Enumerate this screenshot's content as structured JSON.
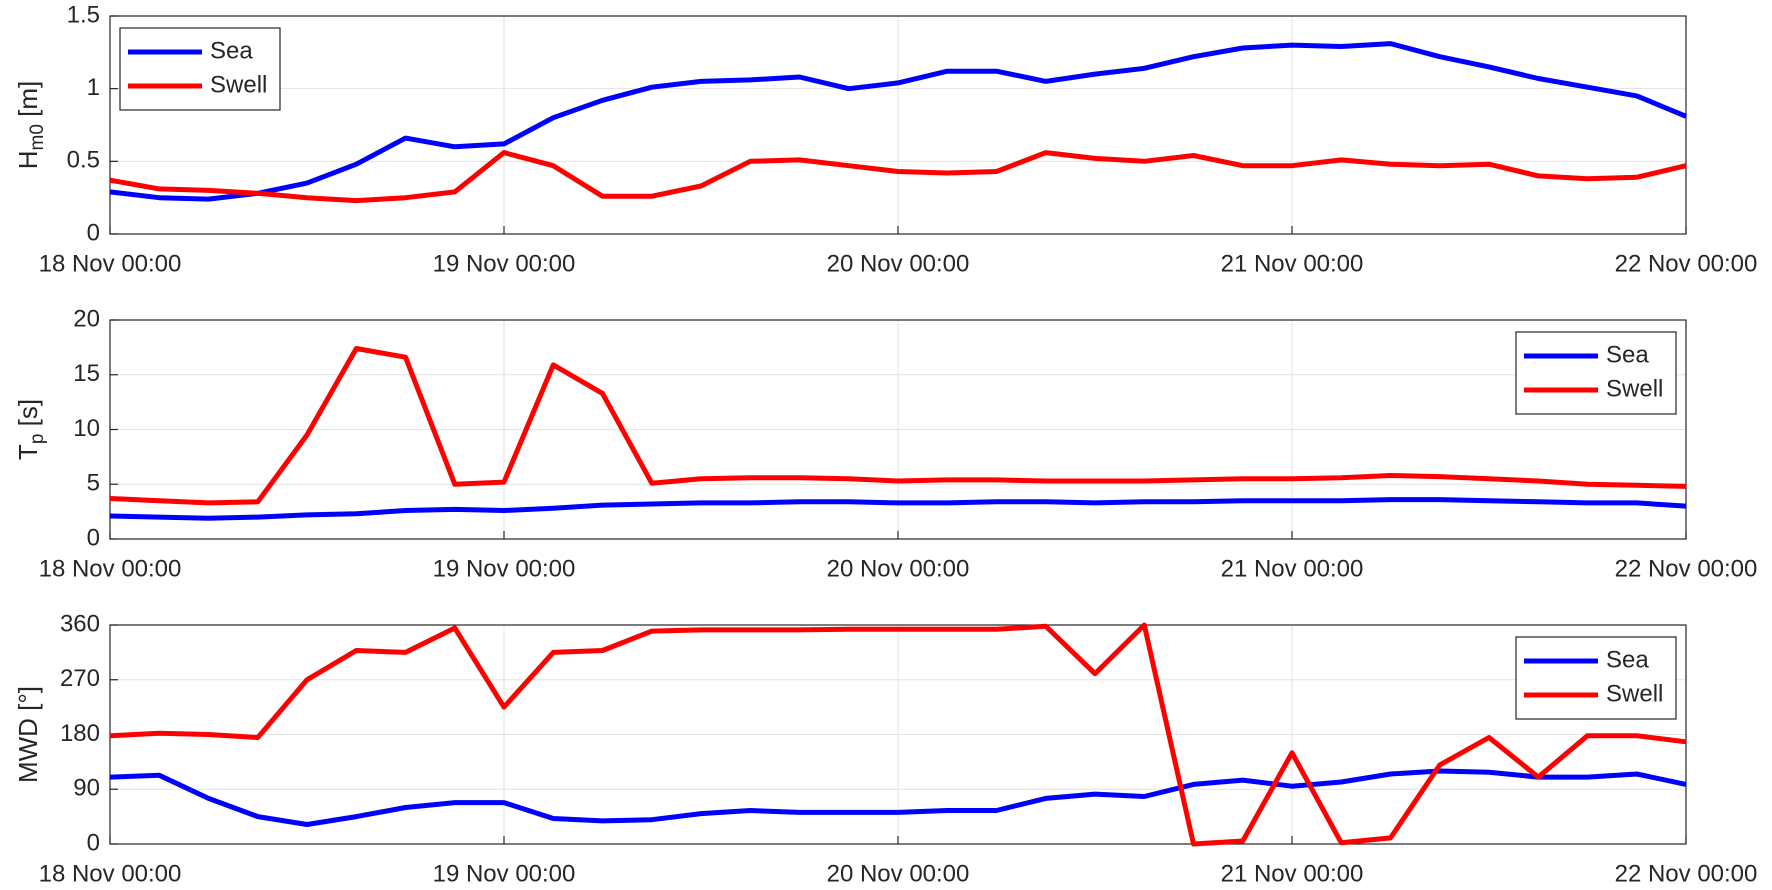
{
  "chart_data": [
    {
      "type": "line",
      "ylabel": [
        "H",
        "m0",
        " [m]"
      ],
      "legend": "upper left",
      "grid": true,
      "xlim": [
        0,
        96
      ],
      "xticks": [
        {
          "value": 0,
          "label": "18 Nov 00:00"
        },
        {
          "value": 24,
          "label": "19 Nov 00:00"
        },
        {
          "value": 48,
          "label": "20 Nov 00:00"
        },
        {
          "value": 72,
          "label": "21 Nov 00:00"
        },
        {
          "value": 96,
          "label": "22 Nov 00:00"
        }
      ],
      "ylim": [
        0,
        1.5
      ],
      "yticks": [
        0,
        0.5,
        1,
        1.5
      ],
      "x": [
        0,
        3,
        6,
        9,
        12,
        15,
        18,
        21,
        24,
        27,
        30,
        33,
        36,
        39,
        42,
        45,
        48,
        51,
        54,
        57,
        60,
        63,
        66,
        69,
        72,
        75,
        78,
        81,
        84,
        87,
        90,
        93,
        96
      ],
      "series": [
        {
          "name": "Sea",
          "color": "#0000ff",
          "values": [
            0.29,
            0.25,
            0.24,
            0.28,
            0.35,
            0.48,
            0.66,
            0.6,
            0.62,
            0.8,
            0.92,
            1.01,
            1.05,
            1.06,
            1.08,
            1.0,
            1.04,
            1.12,
            1.12,
            1.05,
            1.1,
            1.14,
            1.22,
            1.28,
            1.3,
            1.29,
            1.31,
            1.22,
            1.15,
            1.07,
            1.01,
            0.95,
            0.81
          ]
        },
        {
          "name": "Swell",
          "color": "#ff0000",
          "values": [
            0.37,
            0.31,
            0.3,
            0.28,
            0.25,
            0.23,
            0.25,
            0.29,
            0.56,
            0.47,
            0.26,
            0.26,
            0.33,
            0.5,
            0.51,
            0.47,
            0.43,
            0.42,
            0.43,
            0.56,
            0.52,
            0.5,
            0.54,
            0.47,
            0.47,
            0.51,
            0.48,
            0.47,
            0.48,
            0.4,
            0.38,
            0.39,
            0.47
          ]
        }
      ]
    },
    {
      "type": "line",
      "ylabel": [
        "T",
        "p",
        " [s]"
      ],
      "legend": "upper right",
      "grid": true,
      "xlim": [
        0,
        96
      ],
      "xticks": [
        {
          "value": 0,
          "label": "18 Nov 00:00"
        },
        {
          "value": 24,
          "label": "19 Nov 00:00"
        },
        {
          "value": 48,
          "label": "20 Nov 00:00"
        },
        {
          "value": 72,
          "label": "21 Nov 00:00"
        },
        {
          "value": 96,
          "label": "22 Nov 00:00"
        }
      ],
      "ylim": [
        0,
        20
      ],
      "yticks": [
        0,
        5,
        10,
        15,
        20
      ],
      "x": [
        0,
        3,
        6,
        9,
        12,
        15,
        18,
        21,
        24,
        27,
        30,
        33,
        36,
        39,
        42,
        45,
        48,
        51,
        54,
        57,
        60,
        63,
        66,
        69,
        72,
        75,
        78,
        81,
        84,
        87,
        90,
        93,
        96
      ],
      "series": [
        {
          "name": "Sea",
          "color": "#0000ff",
          "values": [
            2.1,
            2.0,
            1.9,
            2.0,
            2.2,
            2.3,
            2.6,
            2.7,
            2.6,
            2.8,
            3.1,
            3.2,
            3.3,
            3.3,
            3.4,
            3.4,
            3.3,
            3.3,
            3.4,
            3.4,
            3.3,
            3.4,
            3.4,
            3.5,
            3.5,
            3.5,
            3.6,
            3.6,
            3.5,
            3.4,
            3.3,
            3.3,
            3.0
          ]
        },
        {
          "name": "Swell",
          "color": "#ff0000",
          "values": [
            3.7,
            3.5,
            3.3,
            3.4,
            9.5,
            17.4,
            16.6,
            5.0,
            5.2,
            15.9,
            13.3,
            5.1,
            5.5,
            5.6,
            5.6,
            5.5,
            5.3,
            5.4,
            5.4,
            5.3,
            5.3,
            5.3,
            5.4,
            5.5,
            5.5,
            5.6,
            5.8,
            5.7,
            5.5,
            5.3,
            5.0,
            4.9,
            4.8
          ]
        }
      ]
    },
    {
      "type": "line",
      "ylabel": "MWD [°]",
      "legend": "upper right",
      "grid": true,
      "xlim": [
        0,
        96
      ],
      "xticks": [
        {
          "value": 0,
          "label": "18 Nov 00:00"
        },
        {
          "value": 24,
          "label": "19 Nov 00:00"
        },
        {
          "value": 48,
          "label": "20 Nov 00:00"
        },
        {
          "value": 72,
          "label": "21 Nov 00:00"
        },
        {
          "value": 96,
          "label": "22 Nov 00:00"
        }
      ],
      "ylim": [
        0,
        360
      ],
      "yticks": [
        0,
        90,
        180,
        270,
        360
      ],
      "x": [
        0,
        3,
        6,
        9,
        12,
        15,
        18,
        21,
        24,
        27,
        30,
        33,
        36,
        39,
        42,
        45,
        48,
        51,
        54,
        57,
        60,
        63,
        66,
        69,
        72,
        75,
        78,
        81,
        84,
        87,
        90,
        93,
        96
      ],
      "series": [
        {
          "name": "Sea",
          "color": "#0000ff",
          "values": [
            110,
            113,
            75,
            45,
            32,
            45,
            60,
            68,
            68,
            42,
            38,
            40,
            50,
            55,
            52,
            52,
            52,
            55,
            55,
            75,
            82,
            78,
            98,
            105,
            95,
            102,
            115,
            120,
            118,
            110,
            110,
            115,
            98
          ]
        },
        {
          "name": "Swell",
          "color": "#ff0000",
          "values": [
            178,
            182,
            180,
            175,
            270,
            318,
            315,
            355,
            225,
            315,
            318,
            350,
            352,
            352,
            352,
            353,
            353,
            353,
            353,
            358,
            280,
            360,
            0,
            5,
            150,
            2,
            10,
            130,
            175,
            110,
            178,
            178,
            168
          ]
        }
      ]
    }
  ]
}
